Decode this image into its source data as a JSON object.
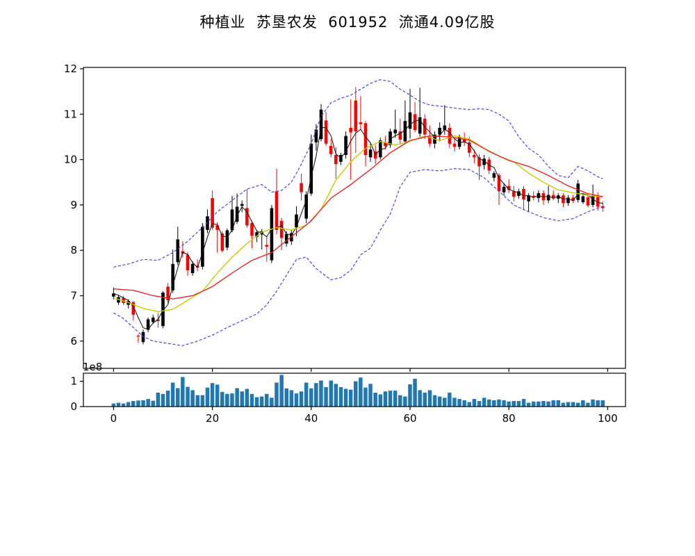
{
  "title": "种植业  苏垦农发  601952  流通4.09亿股",
  "title_parts": {
    "industry": "种植业",
    "stock_name": "苏垦农发",
    "stock_code": "601952",
    "float_shares_label": "流通4.09亿股"
  },
  "colors": {
    "background": "#ffffff",
    "candle_up": "#000000",
    "candle_down": "#ff0000",
    "volume_bar": "#1f77b4",
    "ma_fast": "#1a1a1a",
    "ma_mid": "#c9c900",
    "ma_slow": "#ee2222",
    "bollinger_band": "#4646e8",
    "axis": "#000000"
  },
  "chart_data": {
    "type": "candlestick+volume",
    "title": "种植业  苏垦农发  601952  流通4.09亿股",
    "legend": "none",
    "grid": false,
    "axes": {
      "xlim": [
        -6.1,
        103.6
      ],
      "main": {
        "ylim": [
          5.4,
          12.03
        ],
        "yticks": [
          6,
          7,
          8,
          9,
          10,
          11,
          12
        ],
        "xticks": [
          0,
          20,
          40,
          60,
          80,
          100
        ]
      },
      "volume": {
        "ylim": [
          0,
          1.32
        ],
        "yticks": [
          0,
          1
        ],
        "xticks": [
          0,
          20,
          40,
          60,
          80,
          100
        ],
        "offset_label": "1e8"
      }
    },
    "ohlc": [
      [
        6.98,
        7.18,
        6.92,
        7.05
      ],
      [
        6.85,
        7.02,
        6.8,
        6.97
      ],
      [
        6.95,
        7.0,
        6.8,
        6.84
      ],
      [
        6.8,
        6.92,
        6.72,
        6.88
      ],
      [
        6.86,
        6.88,
        6.45,
        6.58
      ],
      [
        6.12,
        6.15,
        5.97,
        6.1
      ],
      [
        5.98,
        6.25,
        5.93,
        6.2
      ],
      [
        6.25,
        6.52,
        6.2,
        6.48
      ],
      [
        6.42,
        6.58,
        6.38,
        6.52
      ],
      [
        6.48,
        6.62,
        6.3,
        6.44
      ],
      [
        6.33,
        7.1,
        6.28,
        7.07
      ],
      [
        7.2,
        7.28,
        6.84,
        6.9
      ],
      [
        7.12,
        8.02,
        7.06,
        7.7
      ],
      [
        7.74,
        8.52,
        7.68,
        8.24
      ],
      [
        7.98,
        8.2,
        7.84,
        7.93
      ],
      [
        7.9,
        7.96,
        7.44,
        7.56
      ],
      [
        7.5,
        7.76,
        7.44,
        7.7
      ],
      [
        7.66,
        7.8,
        7.54,
        7.62
      ],
      [
        7.64,
        8.6,
        7.58,
        8.52
      ],
      [
        8.45,
        8.9,
        8.38,
        8.75
      ],
      [
        9.15,
        9.32,
        8.45,
        8.5
      ],
      [
        8.55,
        8.62,
        7.95,
        8.45
      ],
      [
        8.37,
        8.42,
        7.96,
        7.99
      ],
      [
        8.06,
        8.48,
        8.0,
        8.44
      ],
      [
        8.44,
        9.2,
        8.4,
        8.9
      ],
      [
        8.63,
        9.25,
        8.58,
        8.96
      ],
      [
        8.98,
        9.1,
        8.84,
        9.02
      ],
      [
        8.93,
        9.35,
        8.5,
        8.55
      ],
      [
        8.6,
        8.65,
        8.05,
        8.32
      ],
      [
        8.3,
        8.45,
        8.18,
        8.4
      ],
      [
        8.35,
        8.47,
        8.02,
        8.42
      ],
      [
        8.12,
        8.3,
        7.75,
        8.08
      ],
      [
        7.78,
        9.0,
        7.72,
        8.93
      ],
      [
        9.3,
        9.8,
        8.35,
        8.45
      ],
      [
        8.65,
        8.72,
        8.0,
        8.27
      ],
      [
        8.15,
        8.42,
        8.08,
        8.36
      ],
      [
        8.2,
        8.46,
        8.12,
        8.38
      ],
      [
        8.51,
        8.97,
        8.31,
        8.79
      ],
      [
        9.48,
        9.69,
        9.1,
        9.28
      ],
      [
        8.7,
        9.3,
        8.6,
        9.23
      ],
      [
        9.25,
        10.55,
        9.2,
        10.35
      ],
      [
        10.38,
        10.78,
        10.2,
        10.66
      ],
      [
        10.45,
        11.22,
        10.4,
        11.1
      ],
      [
        10.86,
        11.05,
        10.3,
        10.35
      ],
      [
        10.3,
        10.45,
        10.05,
        10.12
      ],
      [
        10.1,
        10.27,
        9.58,
        9.9
      ],
      [
        9.95,
        10.15,
        9.88,
        10.1
      ],
      [
        10.1,
        10.62,
        10.02,
        10.52
      ],
      [
        10.7,
        11.33,
        9.55,
        10.6
      ],
      [
        11.3,
        11.6,
        10.15,
        10.62
      ],
      [
        10.82,
        11.4,
        10.65,
        10.78
      ],
      [
        10.8,
        10.85,
        9.85,
        10.1
      ],
      [
        10.05,
        10.35,
        9.95,
        10.22
      ],
      [
        10.18,
        10.32,
        9.9,
        10.02
      ],
      [
        10.05,
        10.48,
        10.0,
        10.42
      ],
      [
        10.38,
        10.52,
        10.22,
        10.3
      ],
      [
        10.32,
        10.68,
        10.26,
        10.62
      ],
      [
        10.58,
        11.1,
        10.48,
        10.66
      ],
      [
        10.62,
        10.9,
        10.35,
        10.44
      ],
      [
        10.4,
        11.3,
        10.36,
        10.85
      ],
      [
        10.68,
        11.56,
        10.46,
        11.04
      ],
      [
        11.0,
        11.27,
        10.6,
        10.65
      ],
      [
        10.57,
        11.58,
        10.5,
        10.93
      ],
      [
        10.9,
        11.0,
        10.45,
        10.55
      ],
      [
        10.5,
        10.75,
        10.28,
        10.35
      ],
      [
        10.35,
        10.62,
        10.25,
        10.55
      ],
      [
        10.55,
        10.82,
        10.4,
        10.7
      ],
      [
        10.65,
        11.2,
        10.55,
        10.75
      ],
      [
        10.7,
        10.8,
        10.25,
        10.35
      ],
      [
        10.35,
        10.46,
        10.18,
        10.28
      ],
      [
        10.28,
        10.55,
        10.22,
        10.5
      ],
      [
        10.46,
        10.6,
        10.3,
        10.38
      ],
      [
        10.38,
        10.5,
        10.05,
        10.15
      ],
      [
        10.1,
        10.22,
        9.92,
        10.05
      ],
      [
        10.05,
        10.12,
        9.55,
        9.85
      ],
      [
        9.88,
        10.1,
        9.78,
        10.02
      ],
      [
        10.0,
        10.06,
        9.68,
        9.76
      ],
      [
        9.6,
        9.74,
        9.52,
        9.7
      ],
      [
        9.66,
        9.7,
        9.0,
        9.3
      ],
      [
        9.28,
        9.48,
        9.2,
        9.4
      ],
      [
        9.42,
        9.56,
        9.26,
        9.33
      ],
      [
        9.3,
        9.42,
        9.08,
        9.18
      ],
      [
        9.2,
        9.36,
        9.14,
        9.3
      ],
      [
        9.35,
        9.42,
        8.9,
        9.12
      ],
      [
        9.08,
        9.26,
        8.85,
        9.21
      ],
      [
        9.2,
        9.3,
        9.1,
        9.16
      ],
      [
        9.15,
        9.32,
        9.06,
        9.26
      ],
      [
        9.26,
        9.32,
        9.0,
        9.1
      ],
      [
        9.1,
        9.42,
        9.04,
        9.22
      ],
      [
        9.22,
        9.32,
        9.1,
        9.14
      ],
      [
        9.14,
        9.26,
        9.04,
        9.21
      ],
      [
        9.21,
        9.26,
        8.95,
        9.04
      ],
      [
        9.04,
        9.22,
        8.98,
        9.16
      ],
      [
        9.16,
        9.22,
        9.04,
        9.09
      ],
      [
        9.11,
        9.55,
        9.05,
        9.47
      ],
      [
        9.06,
        9.24,
        9.02,
        9.19
      ],
      [
        9.17,
        9.24,
        8.95,
        8.99
      ],
      [
        9.0,
        9.45,
        8.95,
        9.21
      ],
      [
        9.18,
        9.28,
        8.88,
        8.96
      ],
      [
        8.97,
        9.08,
        8.85,
        8.93
      ]
    ],
    "volume_1e8": [
      0.12,
      0.15,
      0.12,
      0.18,
      0.22,
      0.24,
      0.25,
      0.3,
      0.23,
      0.55,
      0.5,
      0.63,
      0.95,
      0.73,
      1.17,
      0.78,
      0.65,
      0.45,
      0.45,
      0.75,
      0.93,
      0.87,
      0.58,
      0.5,
      0.52,
      0.73,
      0.6,
      0.7,
      0.5,
      0.37,
      0.4,
      0.5,
      0.35,
      0.95,
      1.25,
      0.72,
      0.65,
      0.52,
      0.6,
      0.95,
      0.72,
      0.93,
      1.03,
      0.77,
      1.03,
      0.9,
      0.77,
      0.7,
      0.67,
      1.0,
      1.15,
      0.75,
      0.9,
      0.55,
      0.48,
      0.6,
      0.63,
      0.63,
      0.45,
      0.4,
      0.88,
      1.1,
      0.65,
      0.55,
      0.65,
      0.45,
      0.4,
      0.35,
      0.55,
      0.35,
      0.3,
      0.25,
      0.18,
      0.3,
      0.22,
      0.35,
      0.28,
      0.25,
      0.28,
      0.25,
      0.2,
      0.22,
      0.22,
      0.3,
      0.15,
      0.2,
      0.2,
      0.22,
      0.2,
      0.25,
      0.25,
      0.15,
      0.18,
      0.18,
      0.15,
      0.25,
      0.15,
      0.28,
      0.25,
      0.25
    ],
    "overlays": {
      "ma_fast": {
        "type": "trailing_mean_of_close",
        "window": 3
      },
      "ma_mid": {
        "x": [
          0,
          3,
          6,
          9,
          12,
          15,
          18,
          21,
          24,
          27,
          30,
          33,
          36,
          39,
          42,
          45,
          48,
          51,
          54,
          57,
          60,
          63,
          66,
          69,
          72,
          75,
          78,
          81,
          84,
          87,
          90,
          93,
          96,
          99
        ],
        "y": [
          6.95,
          6.85,
          6.72,
          6.65,
          6.7,
          6.9,
          7.1,
          7.5,
          7.85,
          8.15,
          8.4,
          8.5,
          8.45,
          8.55,
          8.9,
          9.55,
          9.95,
          10.25,
          10.4,
          10.32,
          10.4,
          10.52,
          10.42,
          10.52,
          10.45,
          10.25,
          10.08,
          9.95,
          9.7,
          9.5,
          9.33,
          9.27,
          9.21,
          9.17
        ]
      },
      "ma_slow": {
        "x": [
          0,
          4,
          8,
          12,
          16,
          20,
          24,
          28,
          32,
          36,
          40,
          44,
          48,
          52,
          56,
          60,
          64,
          68,
          72,
          76,
          80,
          84,
          88,
          92,
          96,
          99
        ],
        "y": [
          7.15,
          7.12,
          7.0,
          6.93,
          7.0,
          7.2,
          7.5,
          7.78,
          7.95,
          8.3,
          8.65,
          9.15,
          9.45,
          9.78,
          10.15,
          10.42,
          10.52,
          10.5,
          10.43,
          10.18,
          9.98,
          9.85,
          9.65,
          9.42,
          9.25,
          9.18
        ]
      },
      "band_upper": {
        "x": [
          0,
          3,
          6,
          9,
          12,
          15,
          18,
          21,
          24,
          27,
          30,
          32,
          34,
          36,
          38,
          40,
          42,
          44,
          46,
          48,
          50,
          52,
          54,
          56,
          58,
          60,
          62,
          64,
          66,
          68,
          70,
          72,
          74,
          76,
          78,
          80,
          82,
          84,
          86,
          88,
          90,
          92,
          94,
          96,
          98,
          99
        ],
        "y": [
          7.63,
          7.7,
          7.8,
          7.78,
          7.95,
          8.2,
          8.5,
          8.85,
          9.1,
          9.35,
          9.45,
          9.28,
          9.32,
          9.5,
          9.9,
          10.35,
          10.95,
          11.25,
          11.35,
          11.42,
          11.55,
          11.68,
          11.76,
          11.72,
          11.55,
          11.42,
          11.28,
          11.2,
          11.18,
          11.15,
          11.12,
          11.1,
          11.12,
          11.1,
          11.0,
          10.85,
          10.5,
          10.25,
          10.1,
          9.85,
          9.65,
          9.6,
          9.85,
          9.75,
          9.62,
          9.58
        ]
      },
      "band_lower": {
        "x": [
          0,
          2,
          4,
          6,
          8,
          11,
          14,
          17,
          20,
          23,
          26,
          29,
          31,
          33,
          35,
          37,
          39,
          41,
          44,
          46,
          48,
          50,
          52,
          54,
          56,
          57,
          58,
          60,
          63,
          66,
          69,
          72,
          75,
          78,
          81,
          84,
          87,
          90,
          93,
          96,
          99
        ],
        "y": [
          6.62,
          6.5,
          6.3,
          6.1,
          6.0,
          5.95,
          5.9,
          6.0,
          6.13,
          6.3,
          6.45,
          6.6,
          6.8,
          7.1,
          7.45,
          7.8,
          7.85,
          7.6,
          7.35,
          7.4,
          7.56,
          7.9,
          8.05,
          8.45,
          8.8,
          9.1,
          9.4,
          9.72,
          9.78,
          9.75,
          9.8,
          9.78,
          9.6,
          9.3,
          9.0,
          8.85,
          8.72,
          8.65,
          8.7,
          8.85,
          8.97
        ]
      }
    }
  }
}
